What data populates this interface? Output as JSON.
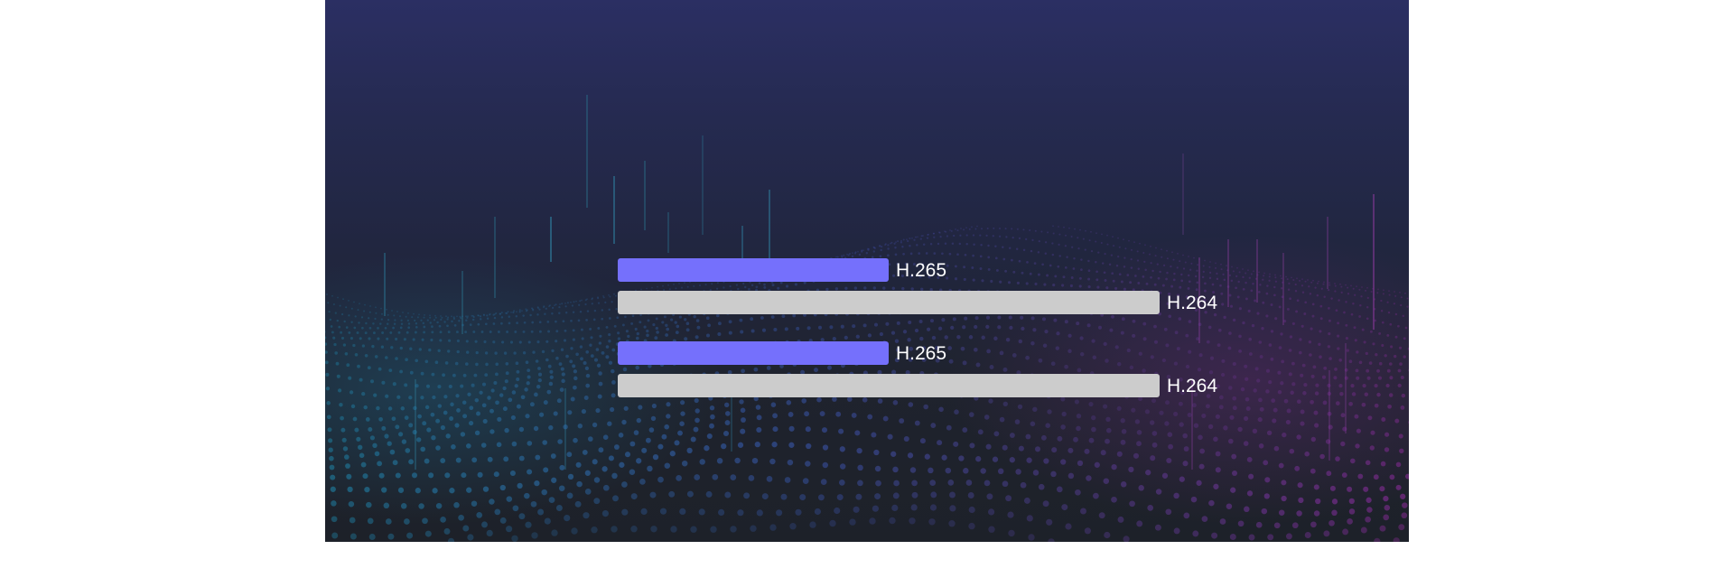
{
  "colors": {
    "accent": "#7570fc",
    "baseline": "#cccccc",
    "background_top": "#2b2f63",
    "background_bottom": "#1d2129",
    "label": "#ffffff"
  },
  "chart_data": {
    "type": "bar",
    "orientation": "horizontal",
    "title": "",
    "xlabel": "",
    "ylabel": "",
    "grid": false,
    "legend": "none",
    "xlim": [
      0,
      100
    ],
    "groups": [
      {
        "bars": [
          {
            "label": "H.265",
            "value": 50,
            "color": "#7570fc"
          },
          {
            "label": "H.264",
            "value": 100,
            "color": "#cccccc"
          }
        ]
      },
      {
        "bars": [
          {
            "label": "H.265",
            "value": 50,
            "color": "#7570fc"
          },
          {
            "label": "H.264",
            "value": 100,
            "color": "#cccccc"
          }
        ]
      }
    ]
  }
}
